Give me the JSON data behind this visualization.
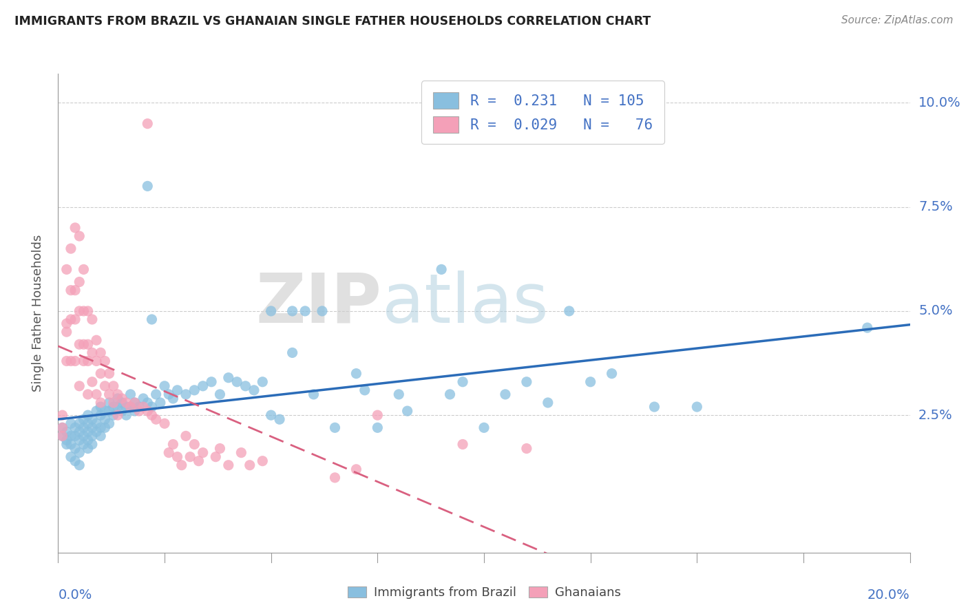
{
  "title": "IMMIGRANTS FROM BRAZIL VS GHANAIAN SINGLE FATHER HOUSEHOLDS CORRELATION CHART",
  "source": "Source: ZipAtlas.com",
  "ylabel": "Single Father Households",
  "xlim": [
    0.0,
    0.2
  ],
  "ylim": [
    -0.012,
    0.107
  ],
  "ytick_vals": [
    0.025,
    0.05,
    0.075,
    0.1
  ],
  "ytick_labels": [
    "2.5%",
    "5.0%",
    "7.5%",
    "10.0%"
  ],
  "brazil_color": "#89bfdf",
  "ghana_color": "#f4a0b8",
  "brazil_line_color": "#2b6cb8",
  "ghana_line_color": "#d96080",
  "brazil_scatter": [
    [
      0.001,
      0.022
    ],
    [
      0.001,
      0.02
    ],
    [
      0.002,
      0.021
    ],
    [
      0.002,
      0.019
    ],
    [
      0.002,
      0.018
    ],
    [
      0.003,
      0.023
    ],
    [
      0.003,
      0.02
    ],
    [
      0.003,
      0.018
    ],
    [
      0.003,
      0.015
    ],
    [
      0.004,
      0.022
    ],
    [
      0.004,
      0.02
    ],
    [
      0.004,
      0.017
    ],
    [
      0.004,
      0.014
    ],
    [
      0.005,
      0.023
    ],
    [
      0.005,
      0.021
    ],
    [
      0.005,
      0.019
    ],
    [
      0.005,
      0.016
    ],
    [
      0.005,
      0.013
    ],
    [
      0.006,
      0.024
    ],
    [
      0.006,
      0.022
    ],
    [
      0.006,
      0.02
    ],
    [
      0.006,
      0.018
    ],
    [
      0.007,
      0.025
    ],
    [
      0.007,
      0.023
    ],
    [
      0.007,
      0.021
    ],
    [
      0.007,
      0.019
    ],
    [
      0.007,
      0.017
    ],
    [
      0.008,
      0.024
    ],
    [
      0.008,
      0.022
    ],
    [
      0.008,
      0.02
    ],
    [
      0.008,
      0.018
    ],
    [
      0.009,
      0.026
    ],
    [
      0.009,
      0.023
    ],
    [
      0.009,
      0.021
    ],
    [
      0.01,
      0.027
    ],
    [
      0.01,
      0.025
    ],
    [
      0.01,
      0.022
    ],
    [
      0.01,
      0.02
    ],
    [
      0.011,
      0.026
    ],
    [
      0.011,
      0.024
    ],
    [
      0.011,
      0.022
    ],
    [
      0.012,
      0.028
    ],
    [
      0.012,
      0.026
    ],
    [
      0.012,
      0.023
    ],
    [
      0.013,
      0.027
    ],
    [
      0.013,
      0.025
    ],
    [
      0.014,
      0.029
    ],
    [
      0.014,
      0.027
    ],
    [
      0.015,
      0.028
    ],
    [
      0.015,
      0.026
    ],
    [
      0.016,
      0.027
    ],
    [
      0.016,
      0.025
    ],
    [
      0.017,
      0.03
    ],
    [
      0.017,
      0.027
    ],
    [
      0.018,
      0.028
    ],
    [
      0.018,
      0.026
    ],
    [
      0.019,
      0.027
    ],
    [
      0.02,
      0.029
    ],
    [
      0.021,
      0.08
    ],
    [
      0.021,
      0.028
    ],
    [
      0.022,
      0.048
    ],
    [
      0.022,
      0.027
    ],
    [
      0.023,
      0.03
    ],
    [
      0.024,
      0.028
    ],
    [
      0.025,
      0.032
    ],
    [
      0.026,
      0.03
    ],
    [
      0.027,
      0.029
    ],
    [
      0.028,
      0.031
    ],
    [
      0.03,
      0.03
    ],
    [
      0.032,
      0.031
    ],
    [
      0.034,
      0.032
    ],
    [
      0.036,
      0.033
    ],
    [
      0.038,
      0.03
    ],
    [
      0.04,
      0.034
    ],
    [
      0.042,
      0.033
    ],
    [
      0.044,
      0.032
    ],
    [
      0.046,
      0.031
    ],
    [
      0.048,
      0.033
    ],
    [
      0.05,
      0.05
    ],
    [
      0.05,
      0.025
    ],
    [
      0.052,
      0.024
    ],
    [
      0.055,
      0.05
    ],
    [
      0.055,
      0.04
    ],
    [
      0.058,
      0.05
    ],
    [
      0.06,
      0.03
    ],
    [
      0.062,
      0.05
    ],
    [
      0.065,
      0.022
    ],
    [
      0.07,
      0.035
    ],
    [
      0.072,
      0.031
    ],
    [
      0.075,
      0.022
    ],
    [
      0.08,
      0.03
    ],
    [
      0.082,
      0.026
    ],
    [
      0.09,
      0.06
    ],
    [
      0.092,
      0.03
    ],
    [
      0.095,
      0.033
    ],
    [
      0.1,
      0.022
    ],
    [
      0.105,
      0.03
    ],
    [
      0.11,
      0.033
    ],
    [
      0.115,
      0.028
    ],
    [
      0.12,
      0.05
    ],
    [
      0.125,
      0.033
    ],
    [
      0.13,
      0.035
    ],
    [
      0.14,
      0.027
    ],
    [
      0.15,
      0.027
    ],
    [
      0.19,
      0.046
    ]
  ],
  "ghana_scatter": [
    [
      0.001,
      0.025
    ],
    [
      0.001,
      0.022
    ],
    [
      0.001,
      0.02
    ],
    [
      0.002,
      0.06
    ],
    [
      0.002,
      0.047
    ],
    [
      0.002,
      0.045
    ],
    [
      0.002,
      0.038
    ],
    [
      0.003,
      0.065
    ],
    [
      0.003,
      0.055
    ],
    [
      0.003,
      0.048
    ],
    [
      0.003,
      0.038
    ],
    [
      0.004,
      0.07
    ],
    [
      0.004,
      0.055
    ],
    [
      0.004,
      0.048
    ],
    [
      0.004,
      0.038
    ],
    [
      0.005,
      0.068
    ],
    [
      0.005,
      0.057
    ],
    [
      0.005,
      0.05
    ],
    [
      0.005,
      0.042
    ],
    [
      0.005,
      0.032
    ],
    [
      0.006,
      0.06
    ],
    [
      0.006,
      0.05
    ],
    [
      0.006,
      0.042
    ],
    [
      0.006,
      0.038
    ],
    [
      0.007,
      0.05
    ],
    [
      0.007,
      0.042
    ],
    [
      0.007,
      0.038
    ],
    [
      0.007,
      0.03
    ],
    [
      0.008,
      0.048
    ],
    [
      0.008,
      0.04
    ],
    [
      0.008,
      0.033
    ],
    [
      0.009,
      0.043
    ],
    [
      0.009,
      0.038
    ],
    [
      0.009,
      0.03
    ],
    [
      0.01,
      0.04
    ],
    [
      0.01,
      0.035
    ],
    [
      0.01,
      0.028
    ],
    [
      0.011,
      0.038
    ],
    [
      0.011,
      0.032
    ],
    [
      0.012,
      0.035
    ],
    [
      0.012,
      0.03
    ],
    [
      0.013,
      0.032
    ],
    [
      0.013,
      0.028
    ],
    [
      0.014,
      0.03
    ],
    [
      0.014,
      0.025
    ],
    [
      0.015,
      0.029
    ],
    [
      0.016,
      0.028
    ],
    [
      0.017,
      0.027
    ],
    [
      0.018,
      0.028
    ],
    [
      0.019,
      0.026
    ],
    [
      0.02,
      0.027
    ],
    [
      0.021,
      0.026
    ],
    [
      0.021,
      0.095
    ],
    [
      0.022,
      0.025
    ],
    [
      0.023,
      0.024
    ],
    [
      0.025,
      0.023
    ],
    [
      0.026,
      0.016
    ],
    [
      0.027,
      0.018
    ],
    [
      0.028,
      0.015
    ],
    [
      0.029,
      0.013
    ],
    [
      0.03,
      0.02
    ],
    [
      0.031,
      0.015
    ],
    [
      0.032,
      0.018
    ],
    [
      0.033,
      0.014
    ],
    [
      0.034,
      0.016
    ],
    [
      0.037,
      0.015
    ],
    [
      0.038,
      0.017
    ],
    [
      0.04,
      0.013
    ],
    [
      0.043,
      0.016
    ],
    [
      0.045,
      0.013
    ],
    [
      0.048,
      0.014
    ],
    [
      0.065,
      0.01
    ],
    [
      0.07,
      0.012
    ],
    [
      0.075,
      0.025
    ],
    [
      0.095,
      0.018
    ],
    [
      0.11,
      0.017
    ]
  ]
}
